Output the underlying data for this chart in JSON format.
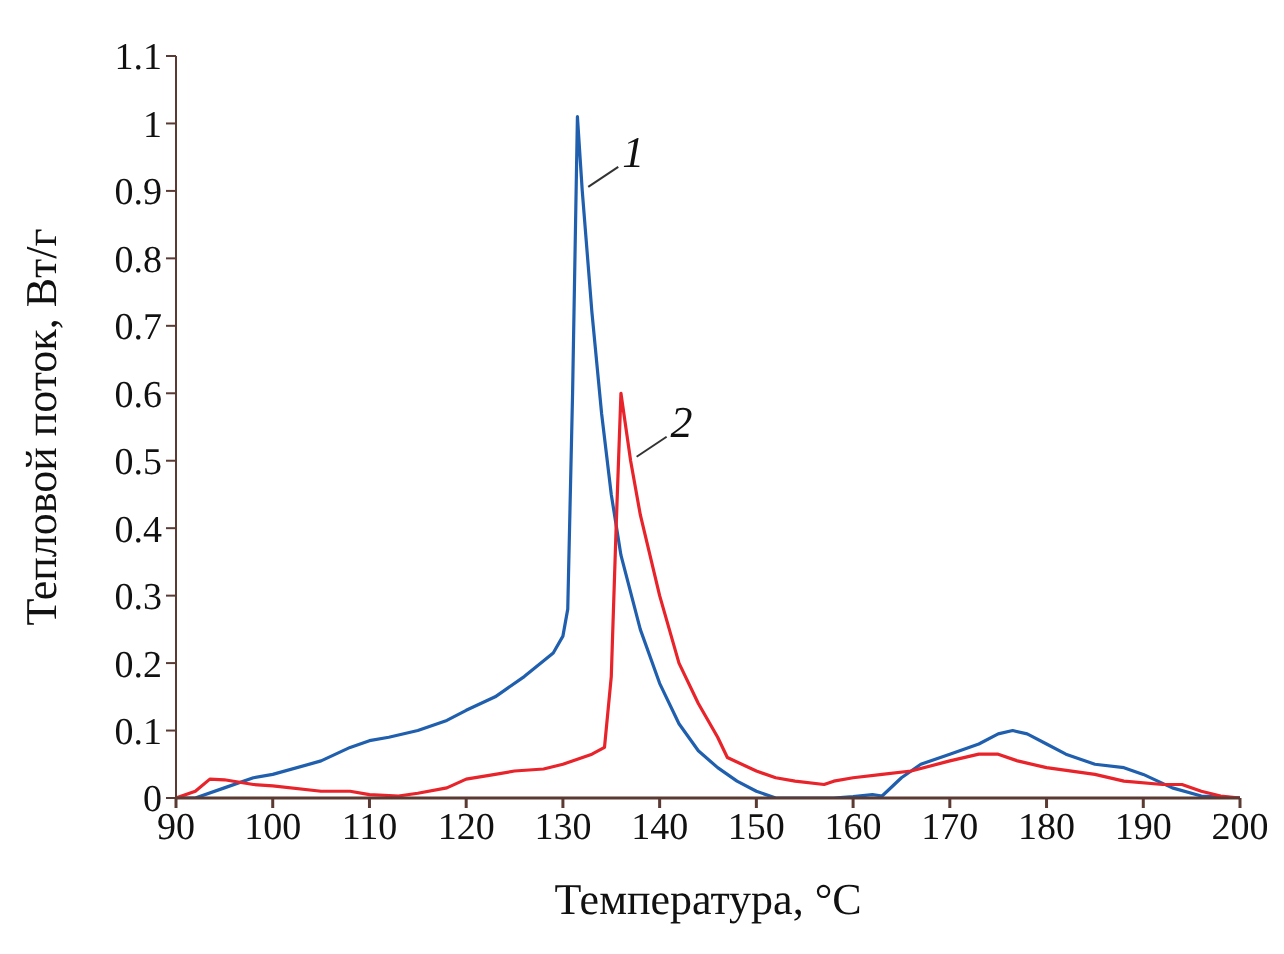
{
  "chart_data": {
    "type": "line",
    "xlabel": "Температура, °C",
    "ylabel": "Тепловой поток, Вт/г",
    "xlim": [
      90,
      200
    ],
    "xticks": [
      90,
      100,
      110,
      120,
      130,
      140,
      150,
      160,
      170,
      180,
      190,
      200
    ],
    "ylim": [
      0,
      1.1
    ],
    "yticks": [
      0,
      0.1,
      0.2,
      0.3,
      0.4,
      0.5,
      0.6,
      0.7,
      0.8,
      0.9,
      1,
      1.1
    ],
    "grid": false,
    "legend": false,
    "marker": "none",
    "line_style": "solid",
    "series": [
      {
        "name": "1",
        "color": "#1f5fae",
        "x": [
          90,
          92,
          95,
          98,
          100,
          105,
          108,
          110,
          112,
          115,
          118,
          120,
          123,
          126,
          129,
          130,
          130.5,
          131,
          131.5,
          132,
          133,
          134,
          135,
          136,
          138,
          140,
          142,
          144,
          146,
          148,
          150,
          152,
          158,
          160,
          162,
          163,
          165,
          167,
          170,
          173,
          175,
          176.5,
          178,
          180,
          182,
          185,
          188,
          190,
          193,
          196,
          200
        ],
        "values": [
          0,
          0,
          0.015,
          0.03,
          0.035,
          0.055,
          0.075,
          0.085,
          0.09,
          0.1,
          0.115,
          0.13,
          0.15,
          0.18,
          0.215,
          0.24,
          0.28,
          0.6,
          1.01,
          0.9,
          0.72,
          0.57,
          0.45,
          0.36,
          0.25,
          0.17,
          0.11,
          0.07,
          0.045,
          0.025,
          0.01,
          0,
          0,
          0.002,
          0.005,
          0.003,
          0.03,
          0.05,
          0.065,
          0.08,
          0.095,
          0.1,
          0.095,
          0.08,
          0.065,
          0.05,
          0.045,
          0.035,
          0.015,
          0.003,
          0
        ]
      },
      {
        "name": "2",
        "color": "#e8232a",
        "x": [
          90,
          92,
          93.5,
          95,
          98,
          100,
          105,
          108,
          110,
          113,
          115,
          118,
          120,
          123,
          125,
          128,
          130,
          133,
          134.3,
          135,
          135.5,
          136,
          137,
          138,
          140,
          142,
          144,
          146,
          147,
          150,
          152,
          154,
          157,
          158,
          160,
          163,
          166,
          170,
          173,
          175,
          177,
          180,
          185,
          188,
          192,
          194,
          196,
          198,
          200
        ],
        "values": [
          0,
          0.01,
          0.028,
          0.027,
          0.02,
          0.018,
          0.01,
          0.01,
          0.005,
          0.003,
          0.007,
          0.015,
          0.028,
          0.035,
          0.04,
          0.043,
          0.05,
          0.065,
          0.075,
          0.18,
          0.4,
          0.6,
          0.5,
          0.42,
          0.3,
          0.2,
          0.14,
          0.09,
          0.06,
          0.04,
          0.03,
          0.025,
          0.02,
          0.025,
          0.03,
          0.035,
          0.04,
          0.055,
          0.065,
          0.065,
          0.055,
          0.045,
          0.035,
          0.025,
          0.02,
          0.02,
          0.01,
          0.003,
          0
        ]
      }
    ]
  }
}
